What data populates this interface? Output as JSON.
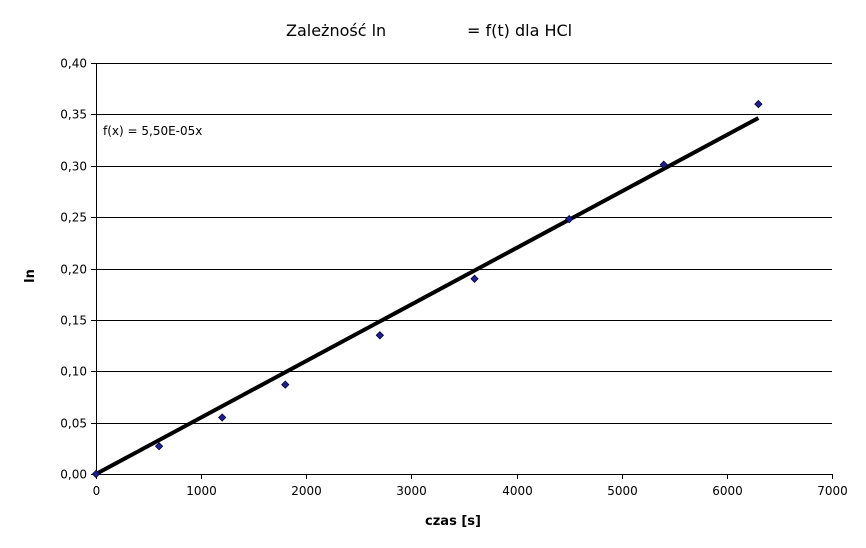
{
  "chart_data": {
    "type": "scatter",
    "title_left": "Zależność ln",
    "title_right": "= f(t) dla HCl",
    "xlabel": "czas [s]",
    "ylabel": "ln",
    "xlim": [
      0,
      7000
    ],
    "ylim": [
      0,
      0.4
    ],
    "x_ticks": [
      0,
      1000,
      2000,
      3000,
      4000,
      5000,
      6000,
      7000
    ],
    "y_ticks": [
      0,
      0.05,
      0.1,
      0.15,
      0.2,
      0.25,
      0.3,
      0.35,
      0.4
    ],
    "x_tick_labels": [
      "0",
      "1000",
      "2000",
      "3000",
      "4000",
      "5000",
      "6000",
      "7000"
    ],
    "y_tick_labels": [
      "0,00",
      "0,05",
      "0,10",
      "0,15",
      "0,20",
      "0,25",
      "0,30",
      "0,35",
      "0,40"
    ],
    "grid": "horizontal",
    "points": [
      {
        "x": 0,
        "y": 0.0
      },
      {
        "x": 600,
        "y": 0.027
      },
      {
        "x": 1200,
        "y": 0.055
      },
      {
        "x": 1800,
        "y": 0.087
      },
      {
        "x": 2700,
        "y": 0.135
      },
      {
        "x": 3600,
        "y": 0.19
      },
      {
        "x": 4500,
        "y": 0.248
      },
      {
        "x": 5400,
        "y": 0.301
      },
      {
        "x": 6300,
        "y": 0.36
      }
    ],
    "trendline": {
      "slope": 5.5e-05,
      "x_start": 0,
      "x_end": 6300,
      "equation": "f(x) = 5,50E-05x"
    },
    "colors": {
      "marker": "#1f1f8a",
      "trendline": "#000000",
      "grid": "#000000",
      "axis": "#000000"
    }
  }
}
